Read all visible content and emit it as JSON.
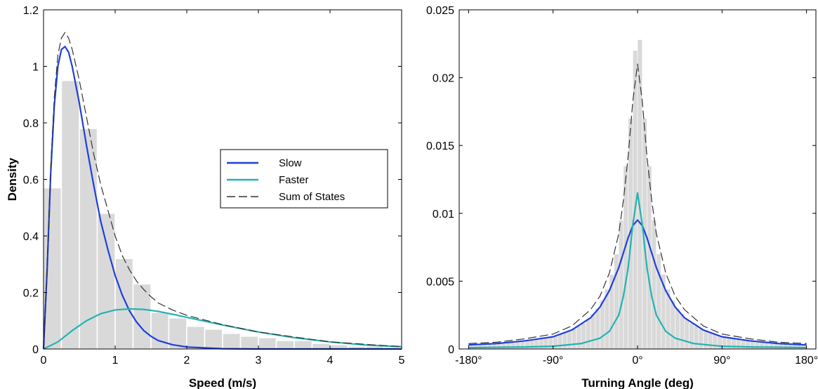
{
  "colors": {
    "slow": "#1f3fdc",
    "faster": "#23b3b3",
    "sum": "#333333",
    "hist": "#d9d9d9",
    "histEdge": "#ffffff"
  },
  "chart_data": [
    {
      "type": "bar",
      "xlabel": "Speed (m/s)",
      "ylabel": "Density",
      "xlim": [
        0,
        5
      ],
      "ylim": [
        0,
        1.2
      ],
      "xticks": [
        0,
        1,
        2,
        3,
        4,
        5
      ],
      "xtick_labels": [
        "0",
        "1",
        "2",
        "3",
        "4",
        "5"
      ],
      "yticks": [
        0,
        0.2,
        0.4,
        0.6,
        0.8,
        1,
        1.2
      ],
      "ytick_labels": [
        "0",
        "0.2",
        "0.4",
        "0.6",
        "0.8",
        "1",
        "1.2"
      ],
      "legend": {
        "placement": "center-right",
        "entries": [
          "Slow",
          "Faster",
          "Sum of States"
        ]
      },
      "histogram": {
        "bin_width": 0.25,
        "bin_starts": [
          0,
          0.25,
          0.5,
          0.75,
          1.0,
          1.25,
          1.5,
          1.75,
          2.0,
          2.25,
          2.5,
          2.75,
          3.0,
          3.25,
          3.5,
          3.75,
          4.0,
          4.25,
          4.5,
          4.75
        ],
        "values": [
          0.57,
          0.95,
          0.78,
          0.48,
          0.32,
          0.23,
          0.13,
          0.11,
          0.08,
          0.07,
          0.055,
          0.045,
          0.04,
          0.03,
          0.03,
          0.02,
          0.015,
          0.01,
          0.01,
          0.005
        ]
      },
      "series": [
        {
          "name": "Slow",
          "style": "solid",
          "color_key": "slow",
          "x": [
            0,
            0.05,
            0.1,
            0.15,
            0.2,
            0.25,
            0.3,
            0.35,
            0.4,
            0.5,
            0.6,
            0.7,
            0.8,
            0.9,
            1.0,
            1.1,
            1.2,
            1.3,
            1.4,
            1.5,
            1.6,
            1.8,
            2.0,
            2.5,
            3.0,
            4.0,
            5.0
          ],
          "y": [
            0,
            0.28,
            0.62,
            0.86,
            1.0,
            1.06,
            1.07,
            1.05,
            1.0,
            0.87,
            0.72,
            0.58,
            0.45,
            0.35,
            0.26,
            0.19,
            0.135,
            0.095,
            0.065,
            0.045,
            0.03,
            0.015,
            0.007,
            0.001,
            0,
            0,
            0
          ]
        },
        {
          "name": "Faster",
          "style": "solid",
          "color_key": "faster",
          "x": [
            0,
            0.2,
            0.4,
            0.6,
            0.8,
            1.0,
            1.2,
            1.4,
            1.6,
            1.8,
            2.0,
            2.5,
            3.0,
            3.5,
            4.0,
            4.5,
            5.0
          ],
          "y": [
            0,
            0.025,
            0.065,
            0.1,
            0.125,
            0.138,
            0.142,
            0.14,
            0.133,
            0.123,
            0.112,
            0.085,
            0.06,
            0.04,
            0.025,
            0.014,
            0.008
          ]
        },
        {
          "name": "Sum of States",
          "style": "dashed",
          "color_key": "sum",
          "x": [
            0,
            0.05,
            0.1,
            0.15,
            0.2,
            0.25,
            0.3,
            0.35,
            0.4,
            0.5,
            0.6,
            0.7,
            0.8,
            0.9,
            1.0,
            1.1,
            1.2,
            1.3,
            1.4,
            1.5,
            1.6,
            1.8,
            2.0,
            2.5,
            3.0,
            4.0,
            5.0
          ],
          "y": [
            0,
            0.29,
            0.64,
            0.89,
            1.04,
            1.1,
            1.12,
            1.1,
            1.06,
            0.95,
            0.82,
            0.69,
            0.58,
            0.49,
            0.4,
            0.33,
            0.28,
            0.24,
            0.21,
            0.185,
            0.163,
            0.138,
            0.119,
            0.086,
            0.06,
            0.025,
            0.008
          ]
        }
      ]
    },
    {
      "type": "bar",
      "xlabel": "Turning Angle (deg)",
      "ylabel": "",
      "xlim": [
        -190,
        190
      ],
      "ylim": [
        0,
        0.025
      ],
      "xticks": [
        -180,
        -90,
        0,
        90,
        180
      ],
      "xtick_labels": [
        "-180°",
        "-90°",
        "0°",
        "90°",
        "180°"
      ],
      "yticks": [
        0,
        0.005,
        0.01,
        0.015,
        0.02,
        0.025
      ],
      "ytick_labels": [
        "0",
        "0.005",
        "0.01",
        "0.015",
        "0.02",
        "0.025"
      ],
      "histogram": {
        "bin_width": 5,
        "bin_centers": [
          -177.5,
          -172.5,
          -167.5,
          -162.5,
          -157.5,
          -152.5,
          -147.5,
          -142.5,
          -137.5,
          -132.5,
          -127.5,
          -122.5,
          -117.5,
          -112.5,
          -107.5,
          -102.5,
          -97.5,
          -92.5,
          -87.5,
          -82.5,
          -77.5,
          -72.5,
          -67.5,
          -62.5,
          -57.5,
          -52.5,
          -47.5,
          -42.5,
          -37.5,
          -32.5,
          -27.5,
          -22.5,
          -17.5,
          -12.5,
          -7.5,
          -2.5,
          2.5,
          7.5,
          12.5,
          17.5,
          22.5,
          27.5,
          32.5,
          37.5,
          42.5,
          47.5,
          52.5,
          57.5,
          62.5,
          67.5,
          72.5,
          77.5,
          82.5,
          87.5,
          92.5,
          97.5,
          102.5,
          107.5,
          112.5,
          117.5,
          122.5,
          127.5,
          132.5,
          137.5,
          142.5,
          147.5,
          152.5,
          157.5,
          162.5,
          167.5,
          172.5,
          177.5
        ],
        "values": [
          0.0003,
          0.0003,
          0.0003,
          0.0003,
          0.00035,
          0.00035,
          0.0004,
          0.0004,
          0.00045,
          0.0005,
          0.0005,
          0.00055,
          0.0006,
          0.00065,
          0.0007,
          0.00075,
          0.0008,
          0.0009,
          0.001,
          0.0011,
          0.0012,
          0.0013,
          0.0015,
          0.0017,
          0.0019,
          0.0022,
          0.0026,
          0.003,
          0.0036,
          0.0044,
          0.0055,
          0.007,
          0.0095,
          0.0135,
          0.017,
          0.022,
          0.0228,
          0.017,
          0.0135,
          0.0095,
          0.007,
          0.0055,
          0.0044,
          0.0036,
          0.003,
          0.0026,
          0.0022,
          0.0019,
          0.0017,
          0.0015,
          0.0013,
          0.0012,
          0.0011,
          0.001,
          0.0009,
          0.0008,
          0.00075,
          0.0007,
          0.00065,
          0.0006,
          0.00055,
          0.0005,
          0.0005,
          0.00045,
          0.0004,
          0.0004,
          0.00035,
          0.00035,
          0.0003,
          0.0003,
          0.0003,
          0.0003
        ]
      },
      "series": [
        {
          "name": "Slow",
          "style": "solid",
          "color_key": "slow",
          "x": [
            -180,
            -150,
            -120,
            -90,
            -70,
            -50,
            -40,
            -30,
            -20,
            -15,
            -10,
            -5,
            0,
            5,
            10,
            15,
            20,
            30,
            40,
            50,
            70,
            90,
            120,
            150,
            180
          ],
          "y": [
            0.0003,
            0.0004,
            0.0006,
            0.0009,
            0.0014,
            0.0023,
            0.0031,
            0.0043,
            0.006,
            0.0071,
            0.0082,
            0.0091,
            0.0095,
            0.0091,
            0.0082,
            0.0071,
            0.006,
            0.0043,
            0.0031,
            0.0023,
            0.0014,
            0.0009,
            0.0006,
            0.0004,
            0.0003
          ]
        },
        {
          "name": "Faster",
          "style": "solid",
          "color_key": "faster",
          "x": [
            -180,
            -120,
            -90,
            -60,
            -40,
            -30,
            -20,
            -15,
            -10,
            -5,
            0,
            5,
            10,
            15,
            20,
            30,
            40,
            60,
            90,
            120,
            180
          ],
          "y": [
            0.0001,
            0.00015,
            0.0002,
            0.0004,
            0.0008,
            0.0013,
            0.0025,
            0.0039,
            0.006,
            0.0092,
            0.0115,
            0.0092,
            0.006,
            0.0039,
            0.0025,
            0.0013,
            0.0008,
            0.0004,
            0.0002,
            0.00015,
            0.0001
          ]
        },
        {
          "name": "Sum of States",
          "style": "dashed",
          "color_key": "sum",
          "x": [
            -180,
            -150,
            -120,
            -90,
            -70,
            -50,
            -40,
            -30,
            -20,
            -15,
            -10,
            -5,
            0,
            5,
            10,
            15,
            20,
            30,
            40,
            50,
            70,
            90,
            120,
            150,
            180
          ],
          "y": [
            0.0004,
            0.0005,
            0.00075,
            0.0011,
            0.0017,
            0.0029,
            0.0039,
            0.0056,
            0.0085,
            0.011,
            0.0142,
            0.0183,
            0.021,
            0.0183,
            0.0142,
            0.011,
            0.0085,
            0.0056,
            0.0039,
            0.0029,
            0.0017,
            0.0011,
            0.00075,
            0.0005,
            0.0004
          ]
        }
      ]
    }
  ]
}
